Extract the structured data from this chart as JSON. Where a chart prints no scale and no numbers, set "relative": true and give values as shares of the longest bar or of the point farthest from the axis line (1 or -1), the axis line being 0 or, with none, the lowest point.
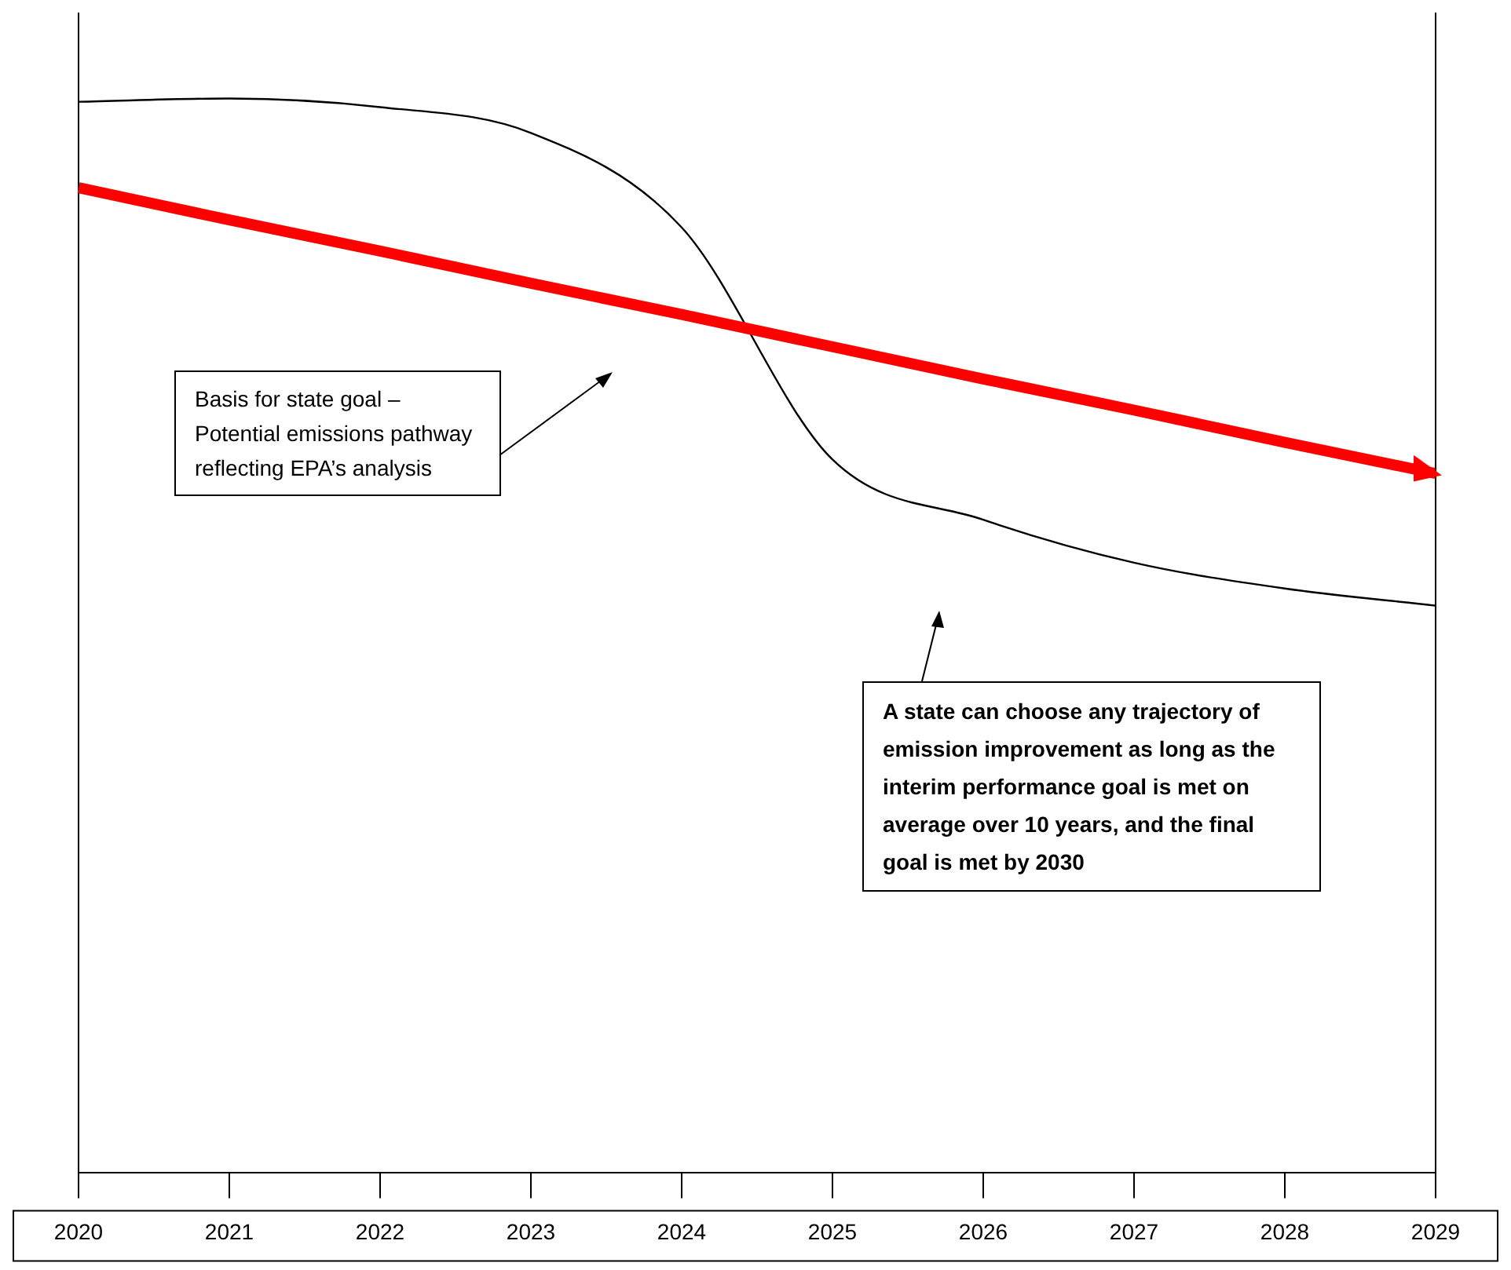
{
  "chart_data": {
    "type": "line",
    "relative": true,
    "categories": [
      "2020",
      "2021",
      "2022",
      "2023",
      "2024",
      "2025",
      "2026",
      "2027",
      "2028",
      "2029"
    ],
    "series": [
      {
        "color": "#ff0000",
        "values": [
          0.917,
          0.887,
          0.858,
          0.828,
          0.799,
          0.769,
          0.739,
          0.71,
          0.68,
          0.651
        ]
      },
      {
        "color": "#000000",
        "values": [
          0.997,
          1,
          0.992,
          0.968,
          0.88,
          0.664,
          0.608,
          0.568,
          0.544,
          0.528
        ]
      }
    ],
    "annotations": [
      "Basis for state goal – Potential emissions pathway reflecting EPA’s analysis",
      "A state can choose any trajectory of emission improvement as long as the interim performance goal is met on average over 10 years, and the final goal is met by 2030"
    ],
    "grid": false,
    "legend": false,
    "marker": "none",
    "line_style": "solid"
  }
}
